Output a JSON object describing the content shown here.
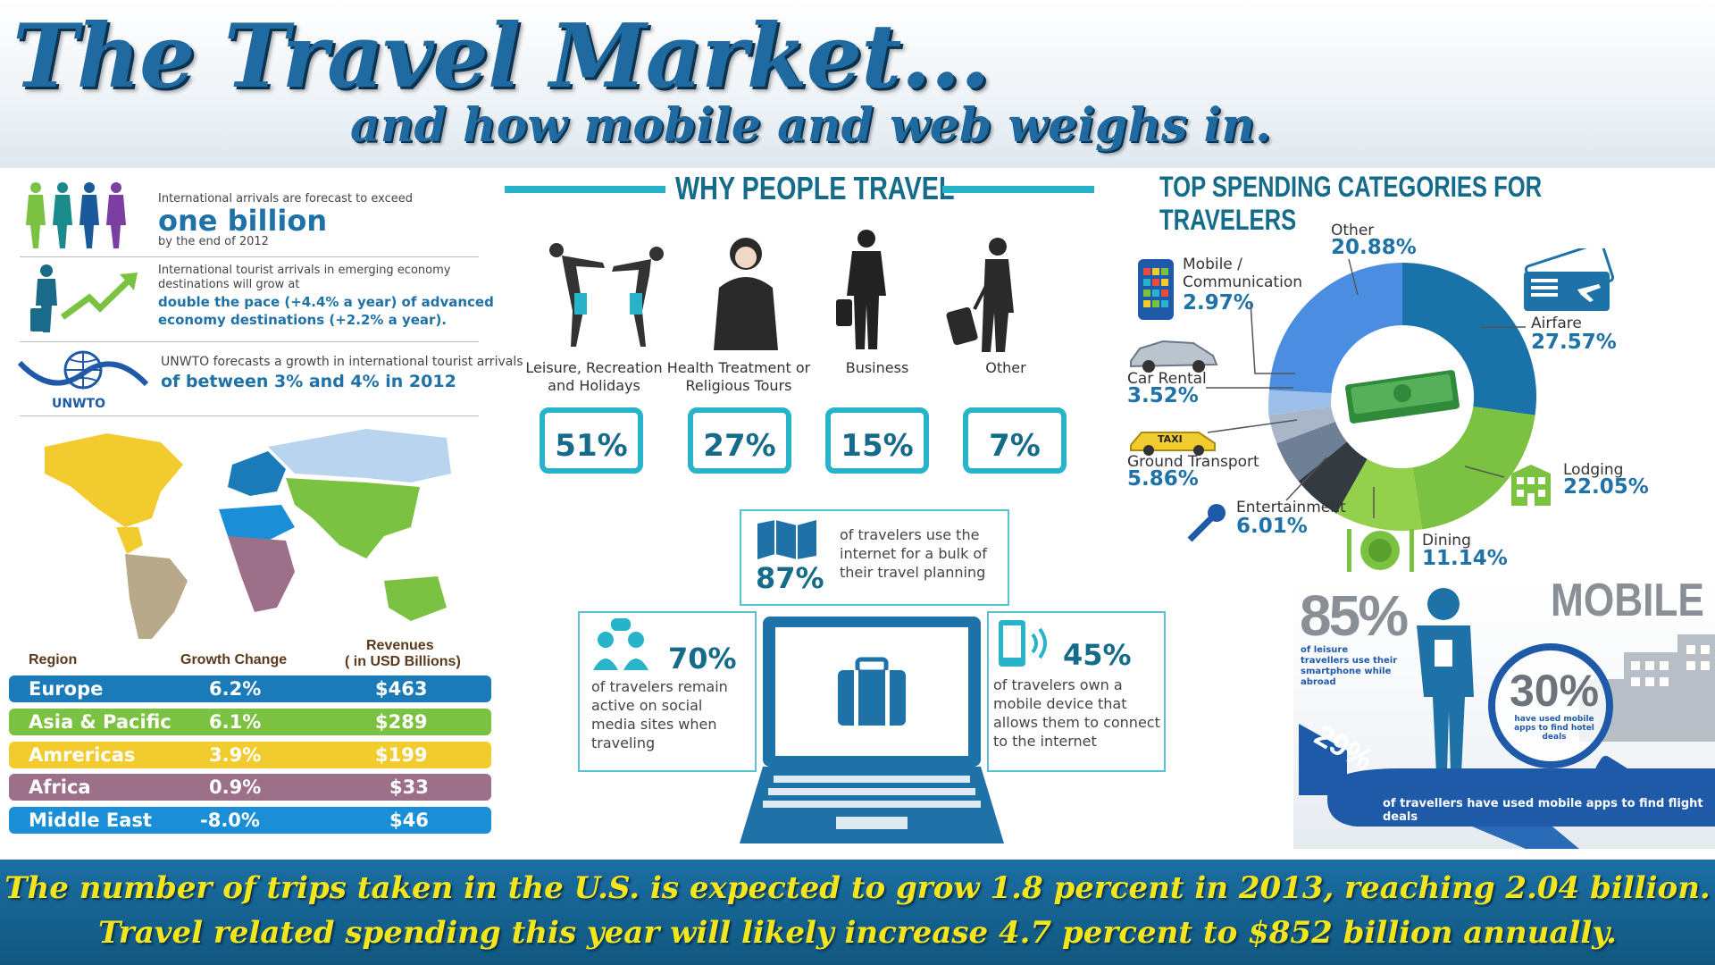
{
  "header": {
    "title": "The Travel Market...",
    "subtitle": "and how mobile and web weighs in."
  },
  "facts": {
    "arrivals_intro": "International arrivals are forecast to exceed",
    "arrivals_big": "one billion",
    "arrivals_end": "by the end of 2012",
    "emerging_intro": "International tourist arrivals in emerging economy destinations will grow at",
    "emerging_bold": "double the pace (+4.4% a year) of advanced economy destinations (+2.2% a year).",
    "unwto_intro": "UNWTO forecasts a growth in international tourist arrivals",
    "unwto_bold": "of between 3% and 4% in 2012",
    "unwto_logo": "UNWTO"
  },
  "regions": {
    "headers": [
      "Region",
      "Growth Change",
      "Revenues",
      "( in USD Billions)"
    ],
    "rows": [
      {
        "name": "Europe",
        "growth": "6.2%",
        "revenue": "$463",
        "color": "#1a7bb8"
      },
      {
        "name": "Asia & Pacific",
        "growth": "6.1%",
        "revenue": "$289",
        "color": "#7cc242"
      },
      {
        "name": "Amrericas",
        "growth": "3.9%",
        "revenue": "$199",
        "color": "#f2cc2e"
      },
      {
        "name": "Africa",
        "growth": "0.9%",
        "revenue": "$33",
        "color": "#9d7089"
      },
      {
        "name": "Middle East",
        "growth": "-8.0%",
        "revenue": "$46",
        "color": "#1a8fd8"
      }
    ]
  },
  "why": {
    "title": "WHY PEOPLE TRAVEL",
    "reasons": [
      {
        "label": "Leisure, Recreation and Holidays",
        "pct": "51%"
      },
      {
        "label": "Health Treatment or Religious Tours",
        "pct": "27%"
      },
      {
        "label": "Business",
        "pct": "15%"
      },
      {
        "label": "Other",
        "pct": "7%"
      }
    ]
  },
  "internet": {
    "top_pct": "87%",
    "top_text": "of travelers use the internet for a bulk of their travel planning",
    "left_pct": "70%",
    "left_text": "of travelers remain active on social media sites when traveling",
    "right_pct": "45%",
    "right_text": "of travelers own a mobile device that allows them to connect to the internet"
  },
  "spending": {
    "title": "TOP SPENDING CATEGORIES FOR TRAVELERS",
    "categories": [
      {
        "name": "Other",
        "value": "20.88%"
      },
      {
        "name": "Mobile / Communication",
        "value": "2.97%"
      },
      {
        "name": "Car Rental",
        "value": "3.52%"
      },
      {
        "name": "Ground Transport",
        "value": "5.86%"
      },
      {
        "name": "Entertainment",
        "value": "6.01%"
      },
      {
        "name": "Dining",
        "value": "11.14%"
      },
      {
        "name": "Lodging",
        "value": "22.05%"
      },
      {
        "name": "Airfare",
        "value": "27.57%"
      }
    ],
    "taxi_sign": "TAXI"
  },
  "mobile": {
    "title": "MOBILE",
    "leisure_pct": "85%",
    "leisure_text": "of leisure travellers use their smartphone while abroad",
    "hotel_pct": "30%",
    "hotel_text": "have used mobile apps to find hotel deals",
    "flight_pct": "29%",
    "flight_text": "of travellers have used mobile apps to find flight deals"
  },
  "footer": {
    "line1": "The number of trips taken in the U.S. is expected to grow 1.8 percent in 2013, reaching 2.04 billion.",
    "line2": "Travel related spending this year will likely increase 4.7 percent to $852 billion annually."
  }
}
